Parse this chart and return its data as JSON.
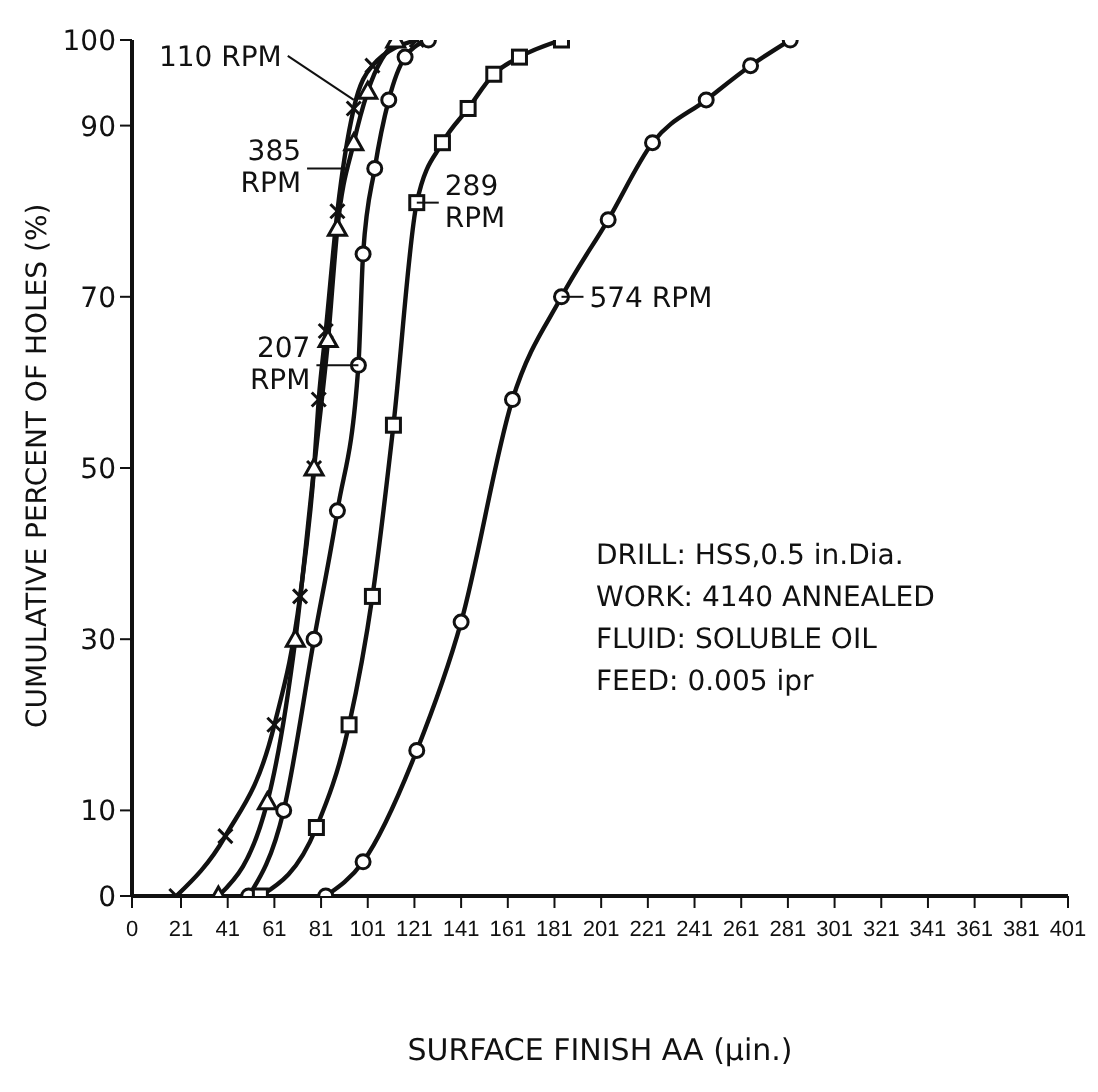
{
  "chart_data": {
    "type": "line",
    "xlabel": "SURFACE FINISH AA (μin.)",
    "ylabel": "CUMULATIVE PERCENT OF HOLES (%)",
    "xlim": [
      0,
      401
    ],
    "xticks": [
      0,
      21,
      41,
      61,
      81,
      101,
      121,
      141,
      161,
      181,
      201,
      221,
      241,
      261,
      281,
      301,
      321,
      341,
      361,
      381,
      401
    ],
    "ylim": [
      0,
      100
    ],
    "yticks": [
      0,
      10,
      30,
      50,
      70,
      90,
      100
    ],
    "grid": false,
    "legend": false,
    "line_style": "solid",
    "series": [
      {
        "color": "#111111",
        "marker": "cross",
        "x": [
          19,
          40,
          61,
          72,
          78,
          80,
          83,
          88,
          95,
          103,
          122
        ],
        "values": [
          0,
          7,
          20,
          35,
          50,
          58,
          66,
          80,
          92,
          97,
          100
        ]
      },
      {
        "color": "#111111",
        "marker": "triangle",
        "x": [
          37,
          58,
          70,
          78,
          84,
          88,
          95,
          101,
          113
        ],
        "values": [
          0,
          11,
          30,
          50,
          65,
          78,
          88,
          94,
          100
        ]
      },
      {
        "color": "#111111",
        "marker": "circle",
        "x": [
          50,
          65,
          78,
          88,
          97,
          99,
          104,
          110,
          117,
          127
        ],
        "values": [
          0,
          10,
          30,
          45,
          62,
          75,
          85,
          93,
          98,
          100
        ]
      },
      {
        "color": "#111111",
        "marker": "square",
        "x": [
          55,
          79,
          93,
          103,
          112,
          122,
          133,
          144,
          155,
          166,
          184
        ],
        "values": [
          0,
          8,
          20,
          35,
          55,
          81,
          88,
          92,
          96,
          98,
          100
        ]
      },
      {
        "color": "#111111",
        "marker": "circle",
        "x": [
          83,
          99,
          122,
          141,
          163,
          184,
          204,
          223,
          246,
          265,
          282
        ],
        "values": [
          0,
          4,
          17,
          32,
          58,
          70,
          79,
          88,
          93,
          97,
          100
        ]
      }
    ],
    "annotations": [
      {
        "text": "110 RPM",
        "x": 95,
        "y": 93
      },
      {
        "text": "385 RPM",
        "x": 93,
        "y": 85
      },
      {
        "text": "207 RPM",
        "x": 97,
        "y": 62
      },
      {
        "text": "289 RPM",
        "x": 122,
        "y": 81
      },
      {
        "text": "574 RPM",
        "x": 184,
        "y": 70
      },
      "DRILL: HSS,0.5 in.Dia.",
      "WORK: 4140 ANNEALED",
      "FLUID: SOLUBLE OIL",
      "FEED: 0.005 ipr"
    ]
  }
}
